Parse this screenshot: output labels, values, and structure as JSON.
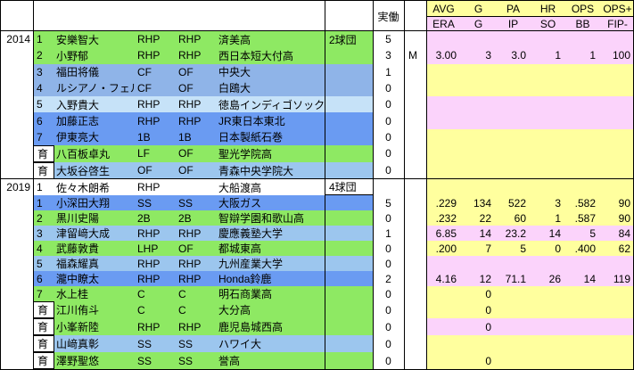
{
  "header": {
    "jitsudo_label": "実働",
    "batting_labels": [
      "AVG",
      "G",
      "PA",
      "HR",
      "OPS",
      "OPS+"
    ],
    "pitching_labels": [
      "ERA",
      "G",
      "IP",
      "SO",
      "BB",
      "FIP-"
    ]
  },
  "colors": {
    "green": "#8ee963",
    "blue1": "#8fb4e8",
    "blue2": "#c6e2f8",
    "blue3": "#6a9bf2",
    "blue4": "#9cc6ee",
    "white": "#ffffff",
    "yellow": "#ffff9e",
    "pink": "#fbd3fb"
  },
  "blocks": [
    {
      "year": "2014",
      "rows": [
        {
          "round": "1",
          "dev": false,
          "name": "安樂智大",
          "pos1": "RHP",
          "pos2": "RHP",
          "school": "済美高",
          "teams": "2球団",
          "years": "5",
          "mark": "",
          "color": "green",
          "stat_bg": "pink",
          "stats": [
            "",
            "",
            "",
            "",
            "",
            ""
          ]
        },
        {
          "round": "2",
          "dev": false,
          "name": "小野郁",
          "pos1": "RHP",
          "pos2": "RHP",
          "school": "西日本短大付高",
          "teams": "",
          "years": "3",
          "mark": "M",
          "color": "green",
          "stat_bg": "pink",
          "stats": [
            "3.00",
            "3",
            "3.0",
            "1",
            "1",
            "100"
          ]
        },
        {
          "round": "3",
          "dev": false,
          "name": "福田将儀",
          "pos1": "CF",
          "pos2": "OF",
          "school": "中央大",
          "teams": "",
          "years": "1",
          "mark": "",
          "color": "blue1",
          "stat_bg": "yellow",
          "stats": [
            "",
            "",
            "",
            "",
            "",
            ""
          ]
        },
        {
          "round": "4",
          "dev": false,
          "name": "ルシアノ・フェルナ",
          "pos1": "CF",
          "pos2": "OF",
          "school": "白鴎大",
          "teams": "",
          "years": "0",
          "mark": "",
          "color": "blue1",
          "stat_bg": "yellow",
          "stats": [
            "",
            "",
            "",
            "",
            "",
            ""
          ]
        },
        {
          "round": "5",
          "dev": false,
          "name": "入野貴大",
          "pos1": "RHP",
          "pos2": "RHP",
          "school": "徳島インディゴソックス",
          "teams": "",
          "years": "0",
          "mark": "",
          "color": "blue2",
          "stat_bg": "pink",
          "stats": [
            "",
            "",
            "",
            "",
            "",
            ""
          ]
        },
        {
          "round": "6",
          "dev": false,
          "name": "加藤正志",
          "pos1": "RHP",
          "pos2": "RHP",
          "school": "JR東日本東北",
          "teams": "",
          "years": "0",
          "mark": "",
          "color": "blue3",
          "stat_bg": "pink",
          "stats": [
            "",
            "",
            "",
            "",
            "",
            ""
          ]
        },
        {
          "round": "7",
          "dev": false,
          "name": "伊東亮大",
          "pos1": "1B",
          "pos2": "1B",
          "school": "日本製紙石巻",
          "teams": "",
          "years": "0",
          "mark": "",
          "color": "blue3",
          "stat_bg": "yellow",
          "stats": [
            "",
            "",
            "",
            "",
            "",
            ""
          ]
        },
        {
          "round": "育",
          "dev": true,
          "name": "八百板卓丸",
          "pos1": "LF",
          "pos2": "OF",
          "school": "聖光学院高",
          "teams": "",
          "years": "0",
          "mark": "",
          "color": "green",
          "stat_bg": "yellow",
          "stats": [
            "",
            "",
            "",
            "",
            "",
            ""
          ]
        },
        {
          "round": "育",
          "dev": true,
          "name": "大坂谷啓生",
          "pos1": "OF",
          "pos2": "OF",
          "school": "青森中央学院大",
          "teams": "",
          "years": "0",
          "mark": "",
          "color": "blue4",
          "stat_bg": "yellow",
          "stats": [
            "",
            "",
            "",
            "",
            "",
            ""
          ]
        }
      ]
    },
    {
      "year": "2019",
      "rows": [
        {
          "round": "1",
          "dev": false,
          "name": "佐々木朗希",
          "pos1": "RHP",
          "pos2": "",
          "school": "大船渡高",
          "teams": "4球団",
          "years": "",
          "mark": "",
          "color": "white",
          "stat_bg": "yellow",
          "stats": [
            "",
            "",
            "",
            "",
            "",
            ""
          ]
        },
        {
          "round": "1",
          "dev": false,
          "name": "小深田大翔",
          "pos1": "SS",
          "pos2": "SS",
          "school": "大阪ガス",
          "teams": "",
          "years": "5",
          "mark": "",
          "color": "blue3",
          "stat_bg": "yellow",
          "stats": [
            ".229",
            "134",
            "522",
            "3",
            ".582",
            "90"
          ]
        },
        {
          "round": "2",
          "dev": false,
          "name": "黒川史陽",
          "pos1": "2B",
          "pos2": "2B",
          "school": "智辯学園和歌山高",
          "teams": "",
          "years": "0",
          "mark": "",
          "color": "green",
          "stat_bg": "yellow",
          "stats": [
            ".232",
            "22",
            "60",
            "1",
            ".587",
            "90"
          ]
        },
        {
          "round": "3",
          "dev": false,
          "name": "津留﨑大成",
          "pos1": "RHP",
          "pos2": "RHP",
          "school": "慶應義塾大学",
          "teams": "",
          "years": "1",
          "mark": "",
          "color": "blue4",
          "stat_bg": "pink",
          "stats": [
            "6.85",
            "14",
            "23.2",
            "14",
            "5",
            "84"
          ]
        },
        {
          "round": "4",
          "dev": false,
          "name": "武藤敦貴",
          "pos1": "LHP",
          "pos2": "OF",
          "school": "都城東高",
          "teams": "",
          "years": "0",
          "mark": "",
          "color": "green",
          "stat_bg": "yellow",
          "stats": [
            ".200",
            "7",
            "5",
            "0",
            ".400",
            "62"
          ]
        },
        {
          "round": "5",
          "dev": false,
          "name": "福森耀真",
          "pos1": "RHP",
          "pos2": "RHP",
          "school": "九州産業大学",
          "teams": "",
          "years": "0",
          "mark": "",
          "color": "blue4",
          "stat_bg": "pink",
          "stats": [
            "",
            "",
            "",
            "",
            "",
            ""
          ]
        },
        {
          "round": "6",
          "dev": false,
          "name": "瀧中瞭太",
          "pos1": "RHP",
          "pos2": "RHP",
          "school": "Honda鈴鹿",
          "teams": "",
          "years": "2",
          "mark": "",
          "color": "blue3",
          "stat_bg": "pink",
          "stats": [
            "4.16",
            "12",
            "71.1",
            "26",
            "14",
            "119"
          ]
        },
        {
          "round": "7",
          "dev": false,
          "name": "水上桂",
          "pos1": "C",
          "pos2": "C",
          "school": "明石商業高",
          "teams": "",
          "years": "0",
          "mark": "",
          "color": "green",
          "stat_bg": "yellow",
          "stats": [
            "",
            "0",
            "",
            "",
            "",
            ""
          ]
        },
        {
          "round": "育",
          "dev": true,
          "name": "江川侑斗",
          "pos1": "C",
          "pos2": "C",
          "school": "大分高",
          "teams": "",
          "years": "0",
          "mark": "",
          "color": "green",
          "stat_bg": "yellow",
          "stats": [
            "",
            "0",
            "",
            "",
            "",
            ""
          ]
        },
        {
          "round": "育",
          "dev": true,
          "name": "小峯新陸",
          "pos1": "RHP",
          "pos2": "RHP",
          "school": "鹿児島城西高",
          "teams": "",
          "years": "0",
          "mark": "",
          "color": "green",
          "stat_bg": "pink",
          "stats": [
            "",
            "0",
            "",
            "",
            "",
            ""
          ]
        },
        {
          "round": "育",
          "dev": true,
          "name": "山﨑真彰",
          "pos1": "SS",
          "pos2": "SS",
          "school": "ハワイ大",
          "teams": "",
          "years": "0",
          "mark": "",
          "color": "blue4",
          "stat_bg": "yellow",
          "stats": [
            "",
            "",
            "",
            "",
            "",
            ""
          ]
        },
        {
          "round": "育",
          "dev": true,
          "name": "澤野聖悠",
          "pos1": "SS",
          "pos2": "SS",
          "school": "誉高",
          "teams": "",
          "years": "0",
          "mark": "",
          "color": "green",
          "stat_bg": "yellow",
          "stats": [
            "",
            "0",
            "",
            "",
            "",
            ""
          ]
        }
      ]
    }
  ]
}
